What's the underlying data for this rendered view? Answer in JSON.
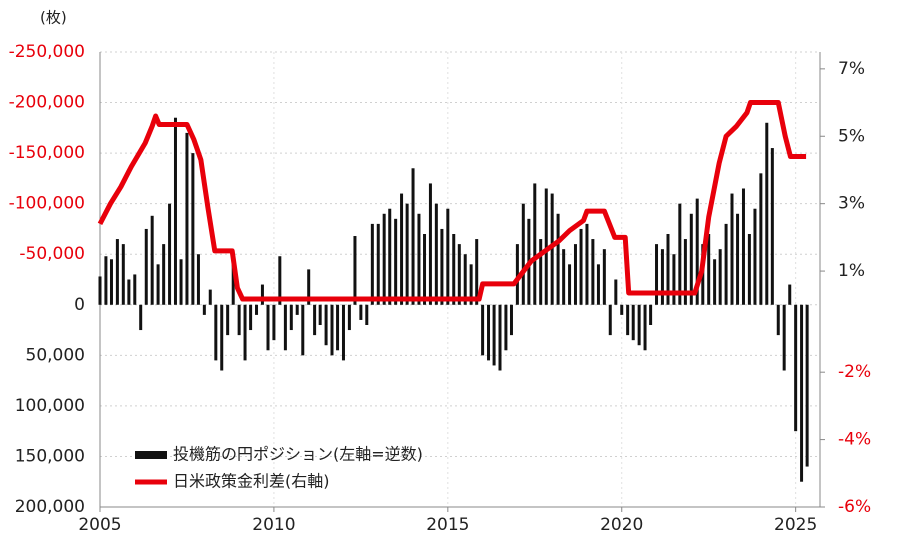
{
  "chart_data": {
    "type": "bar_line",
    "y_unit_label": "(枚)",
    "grid": true,
    "negative_label_color": "#e8000b",
    "legend": "bottom-left",
    "xlim": [
      2005,
      2025.7
    ],
    "xticks": [
      2005,
      2010,
      2015,
      2020,
      2025
    ],
    "ylim": [
      200000,
      -250000
    ],
    "yticks": [
      {
        "value": -250000,
        "label": "-250,000"
      },
      {
        "value": -200000,
        "label": "-200,000"
      },
      {
        "value": -150000,
        "label": "-150,000"
      },
      {
        "value": -100000,
        "label": "-100,000"
      },
      {
        "value": -50000,
        "label": "-50,000"
      },
      0,
      {
        "value": 50000,
        "label": "50,000"
      },
      {
        "value": 100000,
        "label": "100,000"
      },
      {
        "value": 150000,
        "label": "150,000"
      },
      {
        "value": 200000,
        "label": "200,000"
      }
    ],
    "y2lim": [
      -6,
      7.5
    ],
    "y2ticks": [
      {
        "value": 7,
        "label": "7%"
      },
      {
        "value": 5,
        "label": "5%"
      },
      {
        "value": 3,
        "label": "3%"
      },
      {
        "value": 1,
        "label": "1%"
      },
      {
        "value": -2,
        "label": "-2%"
      },
      {
        "value": -4,
        "label": "-4%"
      },
      {
        "value": -6,
        "label": "-6%"
      }
    ],
    "series": [
      {
        "name": "投機筋の円ポジション(左軸=逆数)",
        "type": "bar",
        "color": "#111111",
        "x": [
          2005,
          2005.17,
          2005.33,
          2005.5,
          2005.67,
          2005.83,
          2006,
          2006.17,
          2006.33,
          2006.5,
          2006.67,
          2006.83,
          2007,
          2007.17,
          2007.33,
          2007.5,
          2007.67,
          2007.83,
          2008,
          2008.17,
          2008.33,
          2008.5,
          2008.67,
          2008.83,
          2009,
          2009.17,
          2009.33,
          2009.5,
          2009.67,
          2009.83,
          2010,
          2010.17,
          2010.33,
          2010.5,
          2010.67,
          2010.83,
          2011,
          2011.17,
          2011.33,
          2011.5,
          2011.67,
          2011.83,
          2012,
          2012.17,
          2012.33,
          2012.5,
          2012.67,
          2012.83,
          2013,
          2013.17,
          2013.33,
          2013.5,
          2013.67,
          2013.83,
          2014,
          2014.17,
          2014.33,
          2014.5,
          2014.67,
          2014.83,
          2015,
          2015.17,
          2015.33,
          2015.5,
          2015.67,
          2015.83,
          2016,
          2016.17,
          2016.33,
          2016.5,
          2016.67,
          2016.83,
          2017,
          2017.17,
          2017.33,
          2017.5,
          2017.67,
          2017.83,
          2018,
          2018.17,
          2018.33,
          2018.5,
          2018.67,
          2018.83,
          2019,
          2019.17,
          2019.33,
          2019.5,
          2019.67,
          2019.83,
          2020,
          2020.17,
          2020.33,
          2020.5,
          2020.67,
          2020.83,
          2021,
          2021.17,
          2021.33,
          2021.5,
          2021.67,
          2021.83,
          2022,
          2022.17,
          2022.33,
          2022.5,
          2022.67,
          2022.83,
          2023,
          2023.17,
          2023.33,
          2023.5,
          2023.67,
          2023.83,
          2024,
          2024.17,
          2024.33,
          2024.5,
          2024.67,
          2024.83,
          2025,
          2025.17,
          2025.33
        ],
        "values": [
          -28000,
          -48000,
          -45000,
          -65000,
          -60000,
          -25000,
          -30000,
          25000,
          -75000,
          -88000,
          -40000,
          -60000,
          -100000,
          -185000,
          -45000,
          -170000,
          -150000,
          -50000,
          10000,
          -15000,
          55000,
          65000,
          30000,
          -40000,
          30000,
          55000,
          25000,
          10000,
          -20000,
          45000,
          35000,
          -48000,
          45000,
          25000,
          10000,
          50000,
          -35000,
          30000,
          20000,
          40000,
          50000,
          45000,
          55000,
          25000,
          -68000,
          15000,
          20000,
          -80000,
          -80000,
          -90000,
          -95000,
          -85000,
          -110000,
          -100000,
          -135000,
          -90000,
          -70000,
          -120000,
          -100000,
          -75000,
          -95000,
          -70000,
          -60000,
          -50000,
          -40000,
          -65000,
          50000,
          55000,
          60000,
          65000,
          45000,
          30000,
          -60000,
          -100000,
          -85000,
          -120000,
          -65000,
          -115000,
          -110000,
          -90000,
          -55000,
          -40000,
          -60000,
          -75000,
          -80000,
          -65000,
          -40000,
          -55000,
          30000,
          -25000,
          10000,
          30000,
          35000,
          40000,
          45000,
          20000,
          -60000,
          -55000,
          -70000,
          -50000,
          -100000,
          -65000,
          -90000,
          -105000,
          -60000,
          -70000,
          -45000,
          -55000,
          -80000,
          -110000,
          -90000,
          -115000,
          -70000,
          -95000,
          -130000,
          -180000,
          -155000,
          30000,
          65000,
          -20000,
          125000,
          175000,
          160000
        ]
      },
      {
        "name": "日米政策金利差(右軸)",
        "type": "line",
        "axis": "y2",
        "color": "#e8000b",
        "x": [
          2005,
          2005.3,
          2005.6,
          2005.9,
          2006.3,
          2006.5,
          2006.6,
          2006.7,
          2007.5,
          2007.7,
          2007.9,
          2008.1,
          2008.3,
          2008.8,
          2008.95,
          2009.1,
          2015.9,
          2016,
          2016.9,
          2017.2,
          2017.4,
          2017.8,
          2018.2,
          2018.5,
          2018.9,
          2019,
          2019.5,
          2019.8,
          2020.1,
          2020.2,
          2022.1,
          2022.3,
          2022.5,
          2022.8,
          2023,
          2023.3,
          2023.6,
          2023.7,
          2024.5,
          2024.7,
          2024.85,
          2025.3
        ],
        "values": [
          2.4,
          3.0,
          3.5,
          4.1,
          4.8,
          5.3,
          5.6,
          5.35,
          5.35,
          4.9,
          4.3,
          2.9,
          1.6,
          1.6,
          0.5,
          0.17,
          0.17,
          0.62,
          0.62,
          1.03,
          1.3,
          1.6,
          1.9,
          2.2,
          2.5,
          2.78,
          2.78,
          2.0,
          2.0,
          0.35,
          0.35,
          1.0,
          2.6,
          4.2,
          5.0,
          5.3,
          5.7,
          6.0,
          6.0,
          5.0,
          4.4,
          4.4
        ]
      }
    ]
  }
}
